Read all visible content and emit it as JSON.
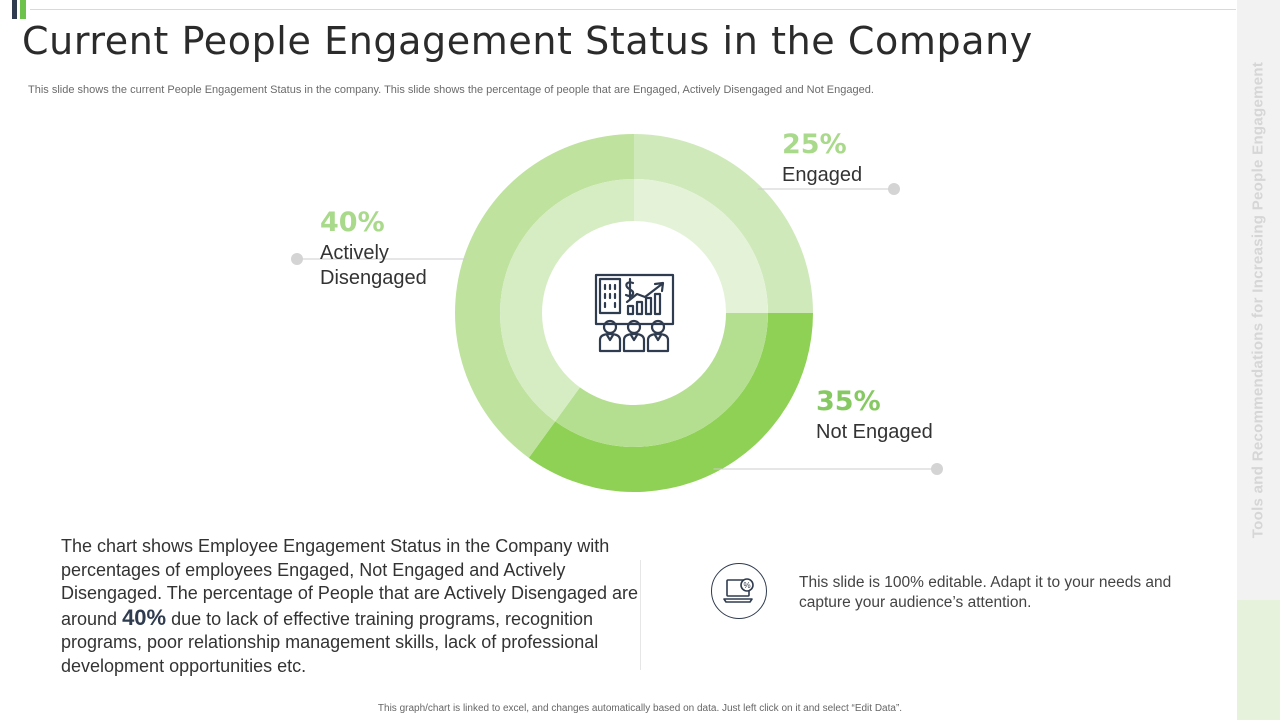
{
  "slide": {
    "title": "Current People Engagement Status in the Company",
    "subtitle": "This slide shows the current People Engagement Status in the company. This slide shows the percentage of people that are Engaged, Actively  Disengaged and Not Engaged.",
    "side_text": "Tools and Recommendations for Increasing People Engagement",
    "body_part1": "The chart shows Employee Engagement Status in the Company with percentages of employees Engaged, Not Engaged and Actively Disengaged. The percentage of People that are Actively Disengaged are around ",
    "body_highlight": "40%",
    "body_part2": "  due to lack of effective training programs, recognition programs, poor relationship management skills, lack of professional development opportunities etc.",
    "edit_note": "This slide is 100% editable. Adapt it to your needs and capture your audience’s attention.",
    "footer": "This graph/chart is linked to excel, and changes automatically based on data. Just left click on it and select “Edit Data”."
  },
  "colors": {
    "accent_dark": "#2f3b4f",
    "accent_green": "#6cc24a"
  },
  "chart_data": {
    "type": "pie",
    "style": "doughnut, two concentric rings",
    "slices": [
      {
        "name": "Engaged",
        "value": 25,
        "label": "25%",
        "outer_color": "#cfe9bb",
        "inner_color": "#e4f3d8"
      },
      {
        "name": "Not Engaged",
        "value": 35,
        "label": "35%",
        "outer_color": "#8ed155",
        "inner_color": "#b5df90"
      },
      {
        "name": "Actively Disengaged",
        "value": 40,
        "label": "40%",
        "outer_color": "#bfe29f",
        "inner_color": "#d6edc3"
      }
    ],
    "label_lines": {
      "Engaged": [
        "Engaged"
      ],
      "Not Engaged": [
        "Not Engaged"
      ],
      "Actively Disengaged": [
        "Actively",
        "Disengaged"
      ]
    },
    "center_icon": "presentation-audience-icon"
  }
}
